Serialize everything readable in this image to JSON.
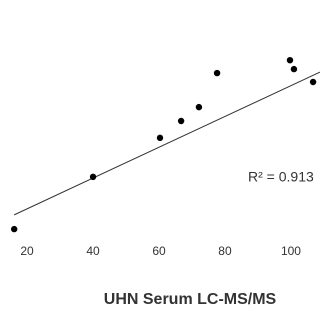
{
  "chart_data": {
    "type": "scatter",
    "xlabel": "UHN Serum LC-MS/MS",
    "annotation": "R² = 0.913",
    "x": [
      16.1,
      40,
      60.3,
      66.7,
      72.1,
      77.6,
      99.7,
      100.9,
      106.7
    ],
    "values": [
      13.3,
      29.1,
      40.9,
      46.0,
      50.2,
      60.5,
      64.4,
      61.7,
      57.8
    ],
    "color": "#000000",
    "trendline": {
      "x": [
        16.1,
        108.8
      ],
      "y": [
        17.6,
        60.8
      ],
      "color": "#333333"
    },
    "xlim": [
      11.8,
      108.8
    ],
    "xticks": [
      20,
      40,
      60,
      80,
      100
    ],
    "ylim": [
      10,
      82
    ]
  }
}
